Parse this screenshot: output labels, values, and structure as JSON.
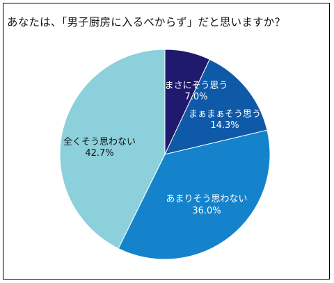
{
  "chart_data": {
    "type": "pie",
    "title": "あなたは、「男子厨房に入るべからず」だと思いますか？",
    "slices": [
      {
        "label": "まさにそう思う",
        "value": 7.0,
        "value_text": "7.0%",
        "color": "#1f1a6e",
        "text_color": "#ffffff"
      },
      {
        "label": "まぁまぁそう思う",
        "value": 14.3,
        "value_text": "14.3%",
        "color": "#0f5aa8",
        "text_color": "#ffffff"
      },
      {
        "label": "あまりそう思わない",
        "value": 36.0,
        "value_text": "36.0%",
        "color": "#1483cc",
        "text_color": "#ffffff"
      },
      {
        "label": "全くそう思わない",
        "value": 42.7,
        "value_text": "42.7%",
        "color": "#8cd0dc",
        "text_color": "#111111"
      }
    ],
    "start_angle": "12 o'clock",
    "direction": "clockwise",
    "legend": "none (labels inside slices)"
  }
}
